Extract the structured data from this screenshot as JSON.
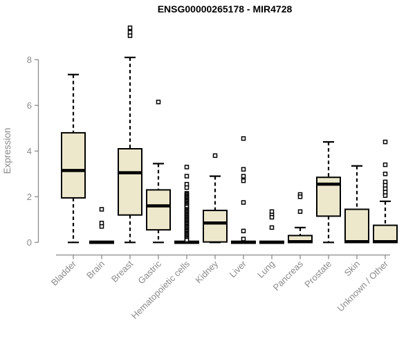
{
  "chart_data": {
    "type": "boxplot",
    "title": "ENSG00000265178 - MIR4728",
    "ylabel": "Expression",
    "xlabel": "",
    "ylim": [
      0,
      9.5
    ],
    "yticks": [
      0,
      2,
      4,
      6,
      8
    ],
    "grid": false,
    "legend": "none",
    "categories": [
      "Bladder",
      "Brain",
      "Breast",
      "Gastric",
      "Hematopoietic cells",
      "Kidney",
      "Liver",
      "Lung",
      "Pancreas",
      "Prostate",
      "Skin",
      "Unknown / Other"
    ],
    "series": [
      {
        "category": "Bladder",
        "whisker_low": 0,
        "q1": 1.95,
        "median": 3.15,
        "q3": 4.8,
        "whisker_high": 7.35,
        "outliers": []
      },
      {
        "category": "Brain",
        "whisker_low": 0,
        "q1": 0,
        "median": 0,
        "q3": 0.05,
        "whisker_high": 0,
        "outliers": [
          1.45,
          0.85,
          0.7
        ]
      },
      {
        "category": "Breast",
        "whisker_low": 0,
        "q1": 1.2,
        "median": 3.05,
        "q3": 4.1,
        "whisker_high": 8.1,
        "outliers": [
          9.4,
          9.2,
          9.05
        ]
      },
      {
        "category": "Gastric",
        "whisker_low": 0,
        "q1": 0.55,
        "median": 1.6,
        "q3": 2.3,
        "whisker_high": 3.45,
        "outliers": [
          6.15
        ]
      },
      {
        "category": "Hematopoietic cells",
        "whisker_low": 0,
        "q1": 0,
        "median": 0,
        "q3": 0.05,
        "whisker_high": 0,
        "outliers": [
          3.3,
          2.9,
          2.55,
          2.4,
          2.15,
          2.1,
          2.05,
          2.0,
          1.95,
          1.9,
          1.85,
          1.8,
          1.75,
          1.7,
          1.65,
          1.6,
          1.55,
          1.45,
          1.4,
          1.35,
          1.3,
          1.25,
          1.2,
          1.15,
          1.1,
          1.05,
          1.0,
          0.95,
          0.9,
          0.85,
          0.8,
          0.75,
          0.7,
          0.65,
          0.6,
          0.55,
          0.5,
          0.45,
          0.4,
          0.35,
          0.3,
          0.25,
          0.2,
          0.15,
          0.1
        ]
      },
      {
        "category": "Kidney",
        "whisker_low": 0,
        "q1": 0.02,
        "median": 0.85,
        "q3": 1.4,
        "whisker_high": 2.9,
        "outliers": [
          3.8
        ]
      },
      {
        "category": "Liver",
        "whisker_low": 0,
        "q1": 0,
        "median": 0,
        "q3": 0.05,
        "whisker_high": 0,
        "outliers": [
          4.55,
          3.2,
          2.9,
          2.7,
          1.75,
          0.5,
          0.15
        ]
      },
      {
        "category": "Lung",
        "whisker_low": 0,
        "q1": 0,
        "median": 0,
        "q3": 0.05,
        "whisker_high": 0,
        "outliers": [
          1.35,
          1.2,
          1.1,
          0.65
        ]
      },
      {
        "category": "Pancreas",
        "whisker_low": 0,
        "q1": 0,
        "median": 0.03,
        "q3": 0.3,
        "whisker_high": 0.65,
        "outliers": [
          2.1,
          2.0,
          1.35
        ]
      },
      {
        "category": "Prostate",
        "whisker_low": 0,
        "q1": 1.15,
        "median": 2.55,
        "q3": 2.85,
        "whisker_high": 4.4,
        "outliers": []
      },
      {
        "category": "Skin",
        "whisker_low": 0,
        "q1": 0,
        "median": 0.03,
        "q3": 1.45,
        "whisker_high": 3.35,
        "outliers": []
      },
      {
        "category": "Unknown / Other",
        "whisker_low": 0,
        "q1": 0,
        "median": 0.03,
        "q3": 0.75,
        "whisker_high": 1.8,
        "outliers": [
          4.4,
          3.4,
          3.0,
          2.65,
          2.5,
          2.35,
          2.2,
          2.05
        ]
      }
    ],
    "colors": {
      "box_fill": "#EDE8CC",
      "box_stroke": "#000000",
      "median": "#000000",
      "whisker": "#000000",
      "outlier_stroke": "#000000",
      "outlier_fill": "#FFFFFF",
      "axis_line": "#8a8a8a",
      "axis_text": "#8a8a8a",
      "title": "#000000",
      "background": "#FFFFFF"
    }
  }
}
